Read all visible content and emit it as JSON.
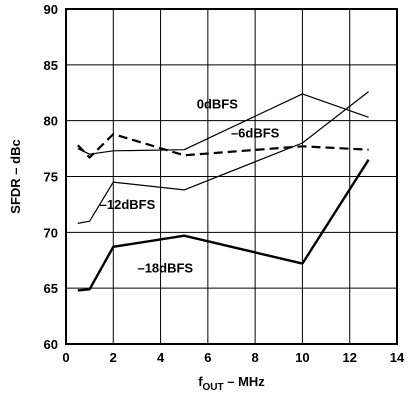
{
  "chart_data": {
    "type": "line",
    "title": "",
    "xlabel": {
      "main": "f",
      "sub": "OUT",
      "rest": " – MHz"
    },
    "ylabel": "SFDR – dBc",
    "xlim": [
      0,
      14
    ],
    "ylim": [
      60,
      90
    ],
    "xticks": [
      "0",
      "2",
      "4",
      "6",
      "8",
      "10",
      "12",
      "14"
    ],
    "yticks": [
      "60",
      "65",
      "70",
      "75",
      "80",
      "85",
      "90"
    ],
    "grid": true,
    "series": [
      {
        "name": "0dBFS",
        "style": "thin",
        "x": [
          0.5,
          1.0,
          2.0,
          5.0,
          10.0,
          12.8
        ],
        "y": [
          77.5,
          77.0,
          77.3,
          77.4,
          82.4,
          80.3
        ]
      },
      {
        "name": "–6dBFS",
        "style": "dashed",
        "x": [
          0.5,
          1.0,
          2.0,
          5.0,
          10.0,
          12.8
        ],
        "y": [
          77.8,
          76.7,
          78.8,
          76.9,
          77.7,
          77.4
        ]
      },
      {
        "name": "–12dBFS",
        "style": "thin",
        "x": [
          0.5,
          1.0,
          2.0,
          5.0,
          10.0,
          12.8
        ],
        "y": [
          70.8,
          71.0,
          74.5,
          73.8,
          78.0,
          82.6
        ]
      },
      {
        "name": "–18dBFS",
        "style": "thick",
        "x": [
          0.5,
          1.0,
          2.0,
          5.0,
          10.0,
          12.8
        ],
        "y": [
          64.8,
          64.9,
          68.7,
          69.7,
          67.2,
          76.5
        ]
      }
    ],
    "annotations": [
      {
        "text": "0dBFS",
        "x": 6.4,
        "y": 81.1
      },
      {
        "text": "–6dBFS",
        "x": 8.0,
        "y": 78.5
      },
      {
        "text": "–12dBFS",
        "x": 2.6,
        "y": 72.1
      },
      {
        "text": "–18dBFS",
        "x": 4.2,
        "y": 66.4
      }
    ]
  }
}
